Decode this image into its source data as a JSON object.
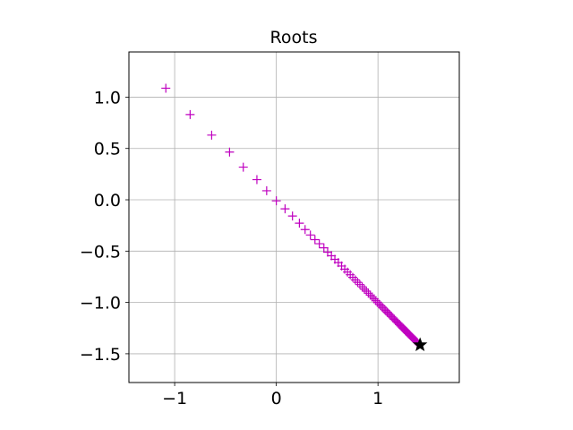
{
  "chart_data": {
    "type": "scatter",
    "title": "Roots",
    "xlabel": "",
    "ylabel": "",
    "xlim": [
      -1.45,
      1.8
    ],
    "ylim": [
      -1.78,
      1.44
    ],
    "grid": true,
    "aspect": "equal",
    "x_ticks": [
      -1,
      0,
      1
    ],
    "x_tick_labels": [
      "−1",
      "0",
      "1"
    ],
    "y_ticks": [
      1.0,
      0.5,
      0.0,
      -0.5,
      -1.0,
      -1.5
    ],
    "y_tick_labels": [
      "1.0",
      "0.5",
      "0.0",
      "−0.5",
      "−1.0",
      "−1.5"
    ],
    "series": [
      {
        "marker": "plus",
        "color": "#bf00bf",
        "points": [
          [
            -1.087,
            1.087
          ],
          [
            -0.848,
            0.83
          ],
          [
            -0.636,
            0.63
          ],
          [
            -0.46,
            0.465
          ],
          [
            -0.325,
            0.318
          ],
          [
            -0.191,
            0.196
          ],
          [
            -0.095,
            0.088
          ],
          [
            0.0,
            -0.01
          ],
          [
            0.086,
            -0.088
          ],
          [
            0.159,
            -0.158
          ],
          [
            0.227,
            -0.228
          ],
          [
            0.283,
            -0.29
          ],
          [
            0.335,
            -0.343
          ],
          [
            0.38,
            -0.388
          ],
          [
            0.423,
            -0.428
          ],
          [
            0.468,
            -0.468
          ],
          [
            0.505,
            -0.51
          ],
          [
            0.542,
            -0.545
          ],
          [
            0.576,
            -0.58
          ],
          [
            0.61,
            -0.612
          ],
          [
            0.642,
            -0.645
          ],
          [
            0.673,
            -0.676
          ],
          [
            0.7,
            -0.704
          ],
          [
            0.727,
            -0.73
          ],
          [
            0.752,
            -0.756
          ],
          [
            0.777,
            -0.781
          ],
          [
            0.8,
            -0.804
          ],
          [
            0.822,
            -0.826
          ],
          [
            0.845,
            -0.848
          ],
          [
            0.866,
            -0.87
          ],
          [
            0.886,
            -0.89
          ],
          [
            0.906,
            -0.91
          ],
          [
            0.925,
            -0.929
          ],
          [
            0.943,
            -0.947
          ],
          [
            0.962,
            -0.965
          ],
          [
            0.979,
            -0.983
          ],
          [
            0.996,
            -1.0
          ],
          [
            1.013,
            -1.017
          ],
          [
            1.029,
            -1.033
          ],
          [
            1.045,
            -1.049
          ],
          [
            1.061,
            -1.065
          ],
          [
            1.076,
            -1.08
          ],
          [
            1.091,
            -1.095
          ],
          [
            1.105,
            -1.109
          ],
          [
            1.12,
            -1.124
          ],
          [
            1.133,
            -1.137
          ],
          [
            1.147,
            -1.151
          ],
          [
            1.16,
            -1.164
          ],
          [
            1.173,
            -1.177
          ],
          [
            1.186,
            -1.19
          ],
          [
            1.198,
            -1.202
          ],
          [
            1.211,
            -1.215
          ],
          [
            1.222,
            -1.226
          ],
          [
            1.234,
            -1.238
          ],
          [
            1.246,
            -1.25
          ],
          [
            1.257,
            -1.261
          ],
          [
            1.268,
            -1.272
          ],
          [
            1.279,
            -1.283
          ],
          [
            1.29,
            -1.294
          ],
          [
            1.3,
            -1.304
          ],
          [
            1.311,
            -1.315
          ],
          [
            1.321,
            -1.325
          ],
          [
            1.331,
            -1.335
          ],
          [
            1.341,
            -1.345
          ],
          [
            1.35,
            -1.354
          ],
          [
            1.36,
            -1.364
          ],
          [
            1.369,
            -1.373
          ],
          [
            1.378,
            -1.382
          ],
          [
            1.387,
            -1.391
          ]
        ]
      },
      {
        "marker": "star",
        "color": "#000000",
        "points": [
          [
            1.414,
            -1.414
          ]
        ]
      }
    ]
  }
}
